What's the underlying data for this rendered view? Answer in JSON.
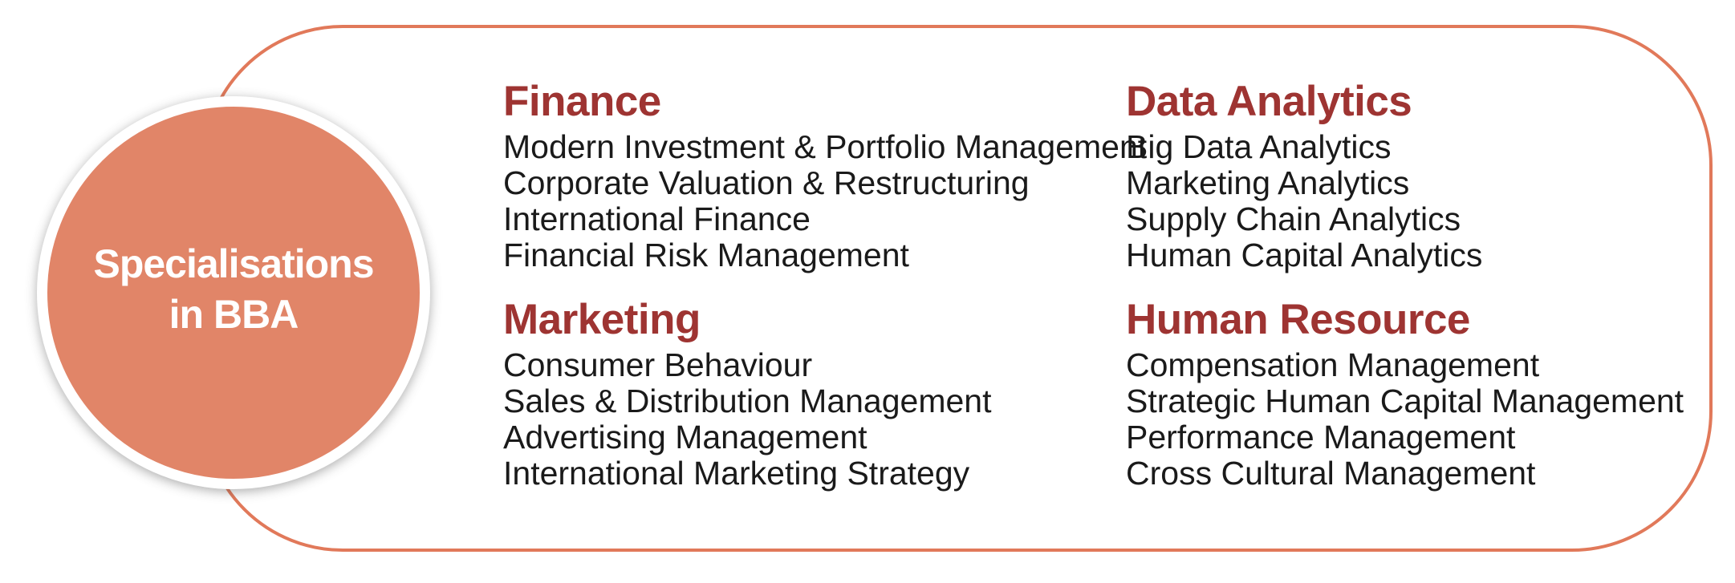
{
  "circle": {
    "line1": "Specialisations",
    "line2": "in BBA"
  },
  "sections": [
    {
      "title": "Finance",
      "items": [
        "Modern Investment & Portfolio Management",
        "Corporate Valuation & Restructuring",
        "International Finance",
        "Financial Risk Management"
      ]
    },
    {
      "title": "Marketing",
      "items": [
        "Consumer Behaviour",
        "Sales & Distribution Management",
        "Advertising Management",
        "International Marketing Strategy"
      ]
    },
    {
      "title": "Data Analytics",
      "items": [
        "Big Data Analytics",
        "Marketing Analytics",
        "Supply Chain Analytics",
        "Human Capital Analytics"
      ]
    },
    {
      "title": "Human Resource",
      "items": [
        "Compensation Management",
        "Strategic Human Capital Management",
        "Performance Management",
        "Cross Cultural Management"
      ]
    }
  ],
  "colors": {
    "circle_fill": "#e18568",
    "frame_border": "#e1795a",
    "heading": "#9e3432",
    "body_text": "#1a1a1a",
    "circle_text": "#ffffff"
  }
}
